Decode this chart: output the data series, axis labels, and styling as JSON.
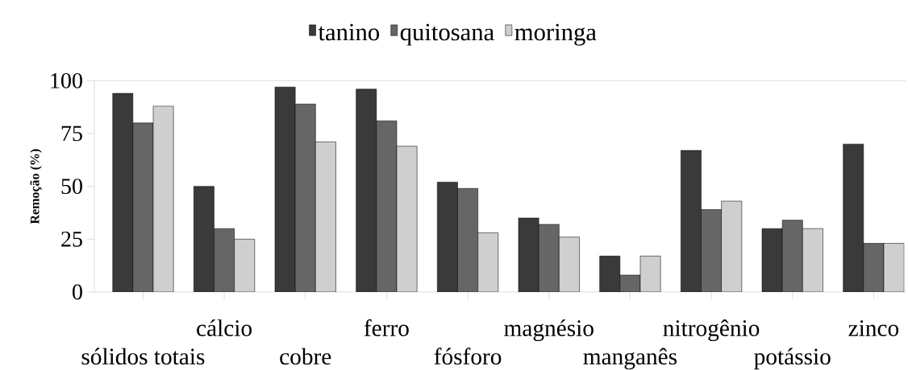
{
  "chart_data": {
    "type": "bar",
    "ylabel": "Remoção (%)",
    "categories": [
      "sólidos totais",
      "cálcio",
      "cobre",
      "ferro",
      "fósforo",
      "magnésio",
      "manganês",
      "nitrogênio",
      "potássio",
      "zinco"
    ],
    "series": [
      {
        "name": "tanino",
        "color": "#3a3a3a",
        "values": [
          94,
          50,
          97,
          96,
          52,
          35,
          17,
          67,
          30,
          70
        ]
      },
      {
        "name": "quitosana",
        "color": "#666666",
        "values": [
          80,
          30,
          89,
          81,
          49,
          32,
          8,
          39,
          34,
          23
        ]
      },
      {
        "name": "moringa",
        "color": "#cfcfcf",
        "values": [
          88,
          25,
          71,
          69,
          28,
          26,
          17,
          43,
          30,
          23
        ]
      }
    ],
    "ylim": [
      0,
      100
    ],
    "yticks": [
      0,
      25,
      50,
      75,
      100
    ],
    "legend": "top"
  }
}
